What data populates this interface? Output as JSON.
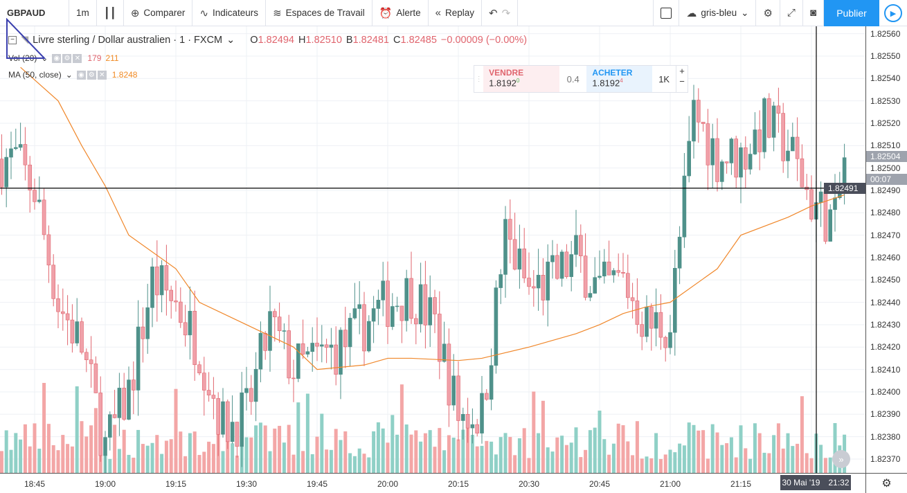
{
  "toolbar": {
    "symbol": "GBPAUD",
    "interval": "1m",
    "compare": "Comparer",
    "indicators": "Indicateurs",
    "workspaces": "Espaces de Travail",
    "alert": "Alerte",
    "replay": "Replay",
    "theme": "gris-bleu",
    "publish": "Publier"
  },
  "legend": {
    "title": "Livre sterling / Dollar australien · 1 · FXCM",
    "o_label": "O",
    "o": "1.82494",
    "h_label": "H",
    "h": "1.82510",
    "b_label": "B",
    "b": "1.82481",
    "c_label": "C",
    "c": "1.82485",
    "change": "−0.00009 (−0.00%)",
    "vol": "Vol (20)",
    "vol_v1": "179",
    "vol_v2": "211",
    "ma": "MA (50, close)",
    "ma_v": "1.8248"
  },
  "trade": {
    "sell_label": "VENDRE",
    "sell_price": "1.8192",
    "sell_sup": "0",
    "spread": "0.4",
    "buy_label": "ACHETER",
    "buy_price": "1.8192",
    "buy_sup": "4",
    "qty": "1K",
    "plus": "+",
    "minus": "−"
  },
  "price_axis": {
    "labels": [
      "1.82560",
      "1.82550",
      "1.82540",
      "1.82530",
      "1.82520",
      "1.82510",
      "1.82500",
      "1.82490",
      "1.82480",
      "1.82470",
      "1.82460",
      "1.82450",
      "1.82440",
      "1.82430",
      "1.82420",
      "1.82410",
      "1.82400",
      "1.82390",
      "1.82380",
      "1.82370"
    ],
    "last_price": "1.82504",
    "countdown": "00:07",
    "crosshair_price": "1.82491"
  },
  "time_axis": {
    "labels": [
      "18:45",
      "19:00",
      "19:15",
      "19:30",
      "19:45",
      "20:00",
      "20:15",
      "20:30",
      "20:45",
      "21:00",
      "21:15"
    ],
    "crosshair_date": "30 Mai '19",
    "crosshair_time": "21:32"
  },
  "colors": {
    "up": "#4f918a",
    "down": "#f0a1a9",
    "vol_up": "#8fd0c6",
    "vol_down": "#f3a6a6",
    "ma": "#f0872a",
    "accent": "#2196f3"
  },
  "chart_data": {
    "type": "candlestick",
    "x_minutes_from_1845": [
      -3,
      0,
      5,
      10,
      15,
      20,
      25,
      30,
      35,
      40,
      45,
      50,
      55,
      60,
      65,
      70,
      75,
      80,
      85,
      90,
      95,
      100,
      105,
      110,
      115,
      120,
      125,
      130,
      135,
      140,
      145,
      150,
      155,
      160,
      165,
      170,
      172
    ],
    "close": [
      1.825,
      1.8249,
      1.8244,
      1.8242,
      1.82375,
      1.824,
      1.8245,
      1.8244,
      1.8242,
      1.82385,
      1.8239,
      1.8243,
      1.8241,
      1.82415,
      1.8242,
      1.8243,
      1.8244,
      1.82445,
      1.8243,
      1.8239,
      1.8239,
      1.8247,
      1.82445,
      1.8245,
      1.8246,
      1.82445,
      1.8245,
      1.8243,
      1.8243,
      1.82525,
      1.82505,
      1.82505,
      1.8252,
      1.8251,
      1.82485,
      1.82475,
      1.82504
    ],
    "ma": [
      1.82545,
      1.8253,
      1.8251,
      1.82492,
      1.8247,
      1.82455,
      1.8244,
      1.8243,
      1.8242,
      1.8241,
      1.82412,
      1.82415,
      1.82415,
      1.82414,
      1.82415,
      1.8242,
      1.82426,
      1.8243,
      1.82435,
      1.82438,
      1.8244,
      1.82455,
      1.8247,
      1.82478,
      1.82483,
      1.82488
    ],
    "ma_x": [
      -3,
      5,
      10,
      15,
      20,
      30,
      35,
      45,
      55,
      60,
      70,
      75,
      80,
      90,
      95,
      105,
      115,
      120,
      125,
      130,
      135,
      145,
      150,
      160,
      165,
      172
    ],
    "ylim": [
      1.82365,
      1.82565
    ]
  }
}
